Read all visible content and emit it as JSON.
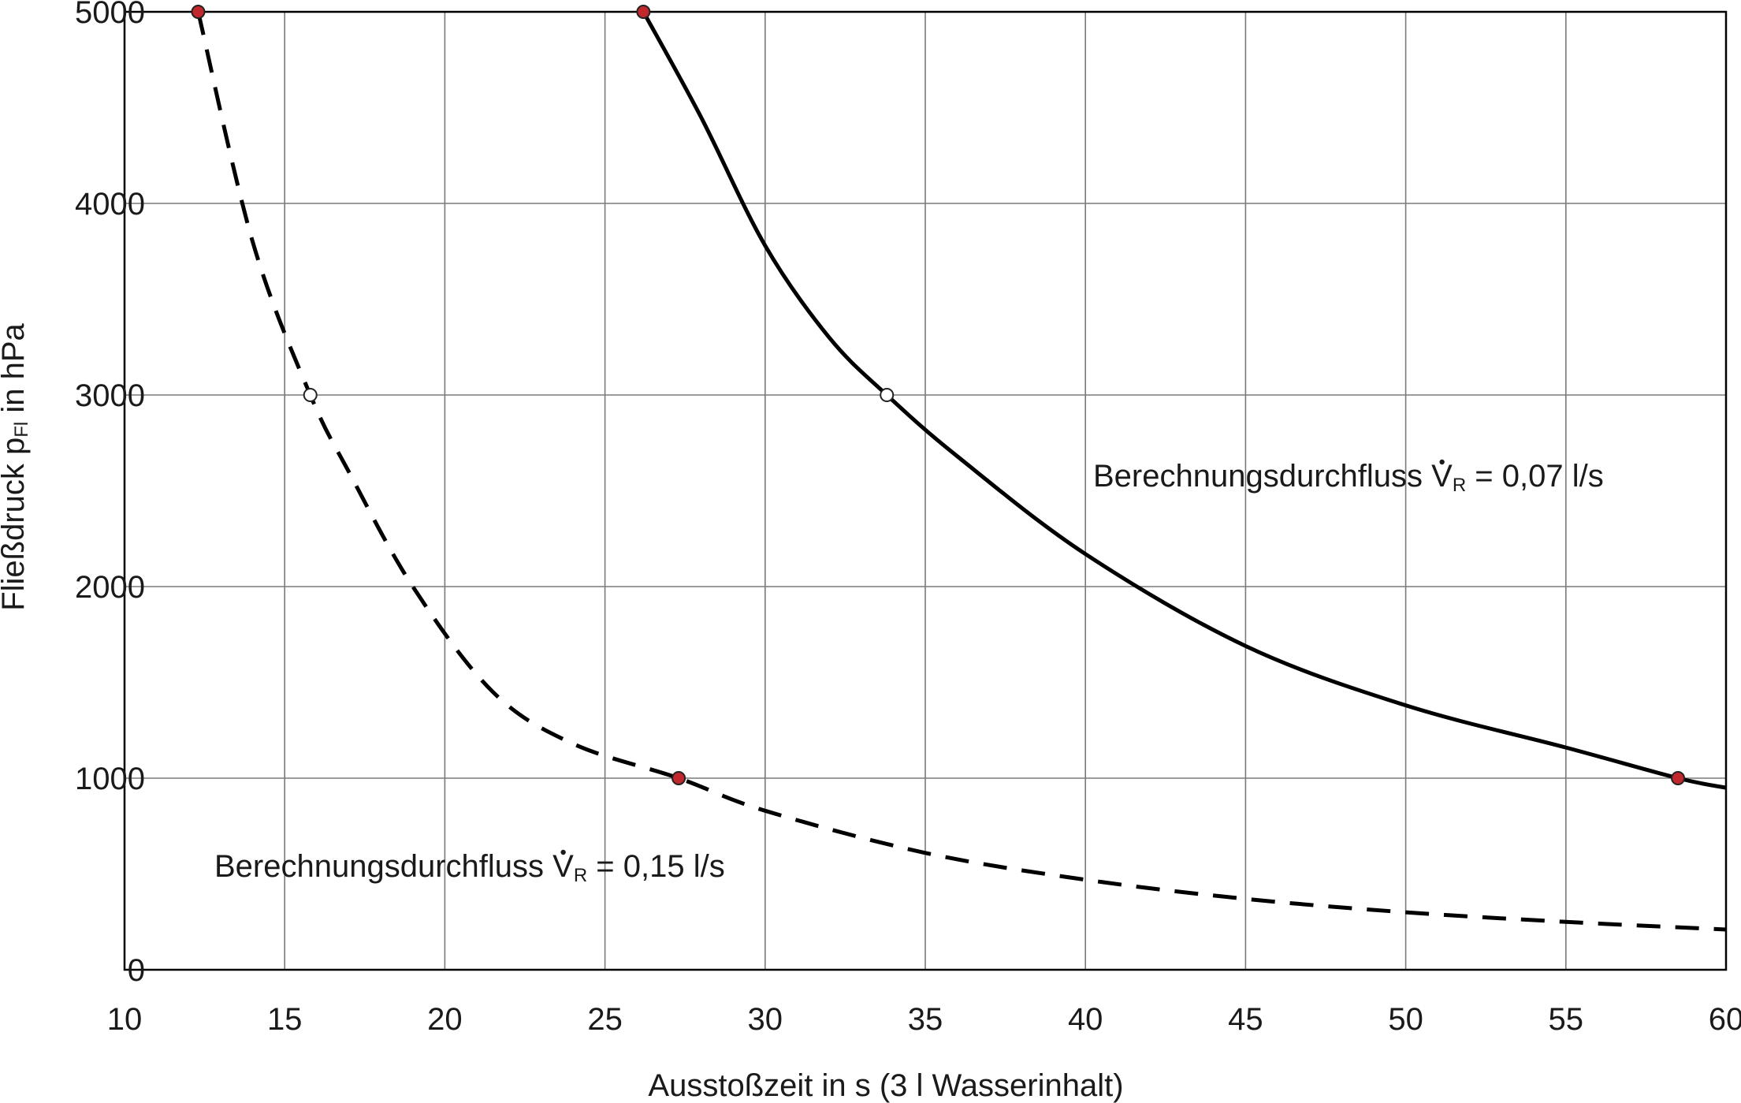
{
  "chart_data": {
    "type": "line",
    "title": "",
    "xlabel": "Ausstoßzeit in s   (3 l Wasserinhalt)",
    "ylabel": {
      "main": "Fließdruck  p",
      "sub": "Fl",
      "tail": "  in hPa"
    },
    "xlim": [
      10,
      60
    ],
    "ylim": [
      0,
      5000
    ],
    "xticks": [
      10,
      15,
      20,
      25,
      30,
      35,
      40,
      45,
      50,
      55,
      60
    ],
    "yticks": [
      0,
      1000,
      2000,
      3000,
      4000,
      5000
    ],
    "xtick_labels": [
      "10",
      "15",
      "20",
      "25",
      "30",
      "35",
      "40",
      "45",
      "50",
      "55",
      "60"
    ],
    "ytick_labels": [
      "0",
      "1000",
      "2000",
      "3000",
      "4000",
      "5000"
    ],
    "grid": true,
    "series": [
      {
        "style": "dashed",
        "color": "#000000",
        "annotation": {
          "prefix": "Berechnungsdurchfluss ",
          "symbol": "V",
          "sub": "R",
          "suffix": " = 0,15 l/s"
        },
        "x": [
          12.3,
          14.0,
          15.8,
          17.0,
          19.0,
          21.5,
          24.0,
          27.3,
          30.0,
          35.0,
          40.0,
          45.0,
          50.0,
          55.0,
          60.0
        ],
        "y": [
          5000,
          3800,
          3000,
          2600,
          2000,
          1450,
          1180,
          1000,
          830,
          610,
          470,
          370,
          300,
          250,
          210
        ],
        "markers": [
          {
            "x": 12.3,
            "y": 5000,
            "fill": "#c0282d"
          },
          {
            "x": 15.8,
            "y": 3000,
            "fill": "#ffffff"
          },
          {
            "x": 27.3,
            "y": 1000,
            "fill": "#c0282d"
          }
        ]
      },
      {
        "style": "solid",
        "color": "#000000",
        "annotation": {
          "prefix": "Berechnungsdurchfluss ",
          "symbol": "V",
          "sub": "R",
          "suffix": " = 0,07 l/s"
        },
        "x": [
          26.2,
          28.0,
          30.0,
          32.0,
          33.8,
          36.0,
          40.0,
          45.0,
          50.0,
          55.0,
          58.5,
          60.0
        ],
        "y": [
          5000,
          4450,
          3780,
          3300,
          3000,
          2680,
          2170,
          1690,
          1380,
          1160,
          1000,
          950
        ],
        "markers": [
          {
            "x": 26.2,
            "y": 5000,
            "fill": "#c0282d"
          },
          {
            "x": 33.8,
            "y": 3000,
            "fill": "#ffffff"
          },
          {
            "x": 58.5,
            "y": 1000,
            "fill": "#c0282d"
          }
        ]
      }
    ]
  }
}
